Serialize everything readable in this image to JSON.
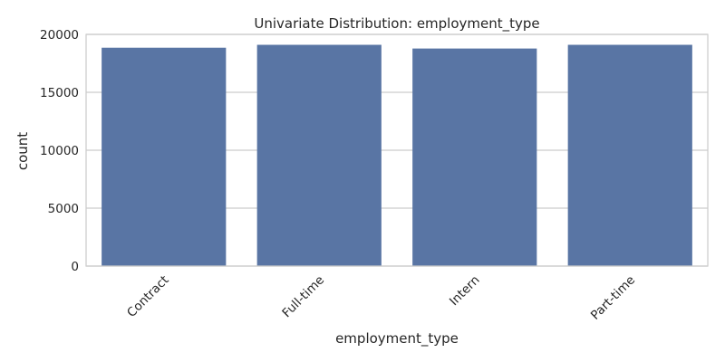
{
  "chart_data": {
    "type": "bar",
    "title": "Univariate Distribution: employment_type",
    "xlabel": "employment_type",
    "ylabel": "count",
    "categories": [
      "Contract",
      "Full-time",
      "Intern",
      "Part-time"
    ],
    "values": [
      18850,
      19100,
      18780,
      19100
    ],
    "ylim": [
      0,
      20000
    ],
    "yticks": [
      "0",
      "5000",
      "10000",
      "15000",
      "20000"
    ],
    "grid": "horizontal",
    "bar_color": "#5975a4",
    "grid_color": "#cccccc",
    "axes_edge_color": "#cccccc"
  }
}
